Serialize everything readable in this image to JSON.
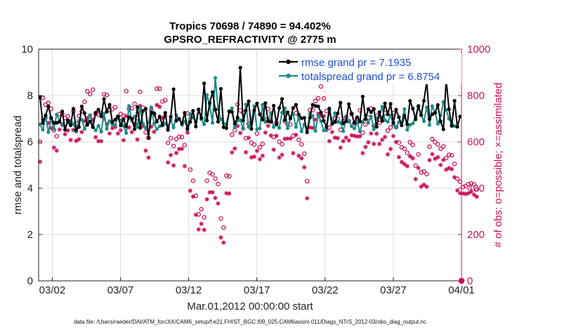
{
  "chart_data": {
    "type": "line",
    "title": "Tropics 70698 / 74890 = 94.402%",
    "subtitle": "GPSRO_REFRACTIVITY @ 2775 m",
    "xlabel": "Mar.01,2012 00:00:00 start",
    "ylabel": "rmse and totalspread",
    "y2label": "# of obs: o=possible; ×=assimilated",
    "footnote": "data file: /Users/raeder/DAI/ATM_forcXX/CAM6_setup/f.e21.FHIST_BGC.f09_025.CAM6assim.011/Diags_NTrS_2012-03/obs_diag_output.nc",
    "xlim": [
      0,
      31
    ],
    "ylim": [
      0,
      10
    ],
    "y2lim": [
      0,
      1000
    ],
    "x_ticks": [
      {
        "x": 1,
        "label": "03/02"
      },
      {
        "x": 6,
        "label": "03/07"
      },
      {
        "x": 11,
        "label": "03/12"
      },
      {
        "x": 16,
        "label": "03/17"
      },
      {
        "x": 21,
        "label": "03/22"
      },
      {
        "x": 26,
        "label": "03/27"
      },
      {
        "x": 31,
        "label": "04/01"
      }
    ],
    "y_ticks": [
      0,
      2,
      4,
      6,
      8,
      10
    ],
    "y2_ticks": [
      0,
      200,
      400,
      600,
      800,
      1000
    ],
    "legend_position": "top-right",
    "series": [
      {
        "name": "rmse grand pr = 7.1935",
        "axis": "left",
        "color": "#000000",
        "marker": "filled-circle",
        "values": [
          7.92,
          6.81,
          7.14,
          7.53,
          7.04,
          6.82,
          6.82,
          6.86,
          7.31,
          6.52,
          6.92,
          6.71,
          7.43,
          6.51,
          6.64,
          7.53,
          7.24,
          6.73,
          6.88,
          6.63,
          7.26,
          7.39,
          7.1,
          7.85,
          7.3,
          7.6,
          6.85,
          6.96,
          7.1,
          6.71,
          6.97,
          6.67,
          7.06,
          6.99,
          6.55,
          7.5,
          6.6,
          7.33,
          7.43,
          6.18,
          7.26,
          7.24,
          6.87,
          7.09,
          6.71,
          7.25,
          6.51,
          7.08,
          8.27,
          6.91,
          6.99,
          6.79,
          7.25,
          6.55,
          6.86,
          7.34,
          6.66,
          7.39,
          7.03,
          8.52,
          6.92,
          7.68,
          8.15,
          7.38,
          6.87,
          8.29,
          6.63,
          6.59,
          7.32,
          7.29,
          6.79,
          7.05,
          9.2,
          6.92,
          7.36,
          7.75,
          6.56,
          7.36,
          7.66,
          7.19,
          6.96,
          7.67,
          6.89,
          6.86,
          7.56,
          6.77,
          7.46,
          7.85,
          6.94,
          7.28,
          7.01,
          7.46,
          7.6,
          7.18,
          7.02,
          7.04,
          6.41,
          7.04,
          7.6,
          7.55,
          7.53,
          7.27,
          6.91,
          6.64,
          7.44,
          6.78,
          6.85,
          7.23,
          7.69,
          6.8,
          6.88,
          7.63,
          7.22,
          6.82,
          7.06,
          6.87,
          7.95,
          6.98,
          7.41,
          7.28,
          7.42,
          6.65,
          7.28,
          6.9,
          7.66,
          7.18,
          7.64,
          6.82,
          7.39,
          7.06,
          6.71,
          7.13,
          6.76,
          7.77,
          7.44,
          6.97,
          7.53,
          7.15,
          7.77,
          8.6,
          6.98,
          7.19,
          7.25,
          7.59,
          6.88,
          6.54,
          8.69,
          7.41,
          6.69,
          7.77,
          6.65,
          7.09
        ]
      },
      {
        "name": "totalspread grand pr = 6.8754",
        "axis": "left",
        "color": "#1a8c88",
        "marker": "filled-circle",
        "values": [
          6.75,
          6.52,
          7.1,
          6.42,
          6.98,
          6.55,
          7.18,
          6.91,
          6.72,
          6.65,
          6.83,
          6.91,
          6.77,
          6.44,
          6.91,
          6.96,
          6.56,
          6.88,
          7.14,
          6.65,
          6.5,
          6.69,
          6.44,
          7.22,
          6.56,
          6.9,
          6.75,
          6.72,
          7.05,
          6.93,
          6.69,
          6.38,
          7.55,
          6.91,
          7.09,
          6.65,
          7.45,
          6.79,
          6.59,
          6.83,
          7.49,
          6.78,
          6.55,
          6.67,
          6.75,
          6.79,
          6.61,
          6.94,
          6.62,
          7.15,
          6.99,
          6.73,
          6.88,
          6.6,
          7.2,
          7.04,
          6.86,
          7.41,
          6.97,
          6.76,
          8.02,
          7.6,
          6.82,
          8.76,
          7.42,
          6.98,
          6.79,
          6.75,
          7.3,
          7.45,
          6.62,
          6.92,
          6.94,
          6.57,
          7.61,
          6.64,
          6.92,
          7.54,
          6.54,
          6.58,
          7.6,
          6.86,
          6.91,
          7.25,
          6.64,
          6.74,
          6.6,
          7.26,
          7.45,
          6.59,
          7.0,
          7.2,
          6.64,
          7.07,
          6.45,
          6.75,
          6.46,
          7.2,
          7.12,
          6.47,
          7.13,
          6.89,
          6.49,
          6.53,
          7.35,
          6.77,
          7.24,
          6.86,
          6.83,
          6.46,
          7.04,
          6.92,
          6.67,
          6.58,
          6.82,
          6.45,
          6.87,
          7.14,
          6.82,
          7.09,
          6.54,
          7.03,
          7.09,
          7.52,
          6.93,
          6.87,
          7.14,
          6.75,
          6.61,
          6.85,
          6.84,
          7.41,
          6.52,
          6.73,
          6.79,
          7.07,
          7.56,
          7.17,
          6.89,
          7.49,
          6.73,
          7.54,
          7.26,
          6.78,
          7.14,
          7.72,
          7.37,
          7.0,
          6.77,
          6.68
        ]
      },
      {
        "name": "# obs possible",
        "axis": "right",
        "color": "#c8125a",
        "marker": "open-circle",
        "values": [
          600,
          790,
          760,
          768,
          742,
          650,
          624,
          720,
          722,
          703,
          710,
          684,
          732,
          679,
          712,
          732,
          773,
          818,
          806,
          825,
          721,
          718,
          723,
          805,
          802,
          737,
          741,
          749,
          706,
          720,
          713,
          819,
          742,
          745,
          764,
          702,
          816,
          747,
          641,
          617,
          737,
          720,
          829,
          829,
          774,
          779,
          596,
          616,
          582,
          612,
          622,
          621,
          586,
          723,
          480,
          432,
          367,
          287,
          309,
          274,
          432,
          466,
          460,
          441,
          418,
          269,
          230,
          454,
          451,
          631,
          650,
          761,
          736,
          726,
          616,
          678,
          596,
          588,
          636,
          576,
          591,
          696,
          742,
          692,
          621,
          683,
          600,
          590,
          689,
          676,
          675,
          626,
          724,
          609,
          589,
          549,
          430,
          737,
          737,
          776,
          788,
          839,
          787,
          733,
          662,
          697,
          700,
          699,
          652,
          690,
          707,
          689,
          720,
          681,
          699,
          736,
          639,
          675,
          705,
          744,
          668,
          712,
          682,
          700,
          724,
          648,
          662,
          724,
          663,
          597,
          576,
          570,
          553,
          598,
          587,
          497,
          546,
          468,
          472,
          461,
          579,
          612,
          599,
          589,
          570,
          580,
          530,
          544,
          542,
          505,
          441,
          428,
          405,
          409,
          417,
          421,
          416,
          395
        ]
      },
      {
        "name": "# obs assimilated",
        "axis": "right",
        "color": "#c8125a",
        "marker": "asterisk",
        "values": [
          514,
          695,
          702,
          682,
          659,
          575,
          562,
          653,
          676,
          633,
          649,
          608,
          651,
          604,
          611,
          642,
          689,
          703,
          714,
          696,
          620,
          603,
          603,
          700,
          677,
          636,
          659,
          664,
          636,
          650,
          607,
          711,
          662,
          642,
          679,
          610,
          755,
          668,
          562,
          532,
          665,
          643,
          759,
          751,
          703,
          712,
          511,
          543,
          498,
          552,
          569,
          570,
          495,
          640,
          389,
          364,
          285,
          222,
          246,
          220,
          352,
          382,
          382,
          358,
          334,
          187,
          165,
          378,
          377,
          554,
          571,
          668,
          638,
          657,
          555,
          617,
          533,
          536,
          561,
          525,
          540,
          640,
          669,
          627,
          566,
          626,
          532,
          544,
          613,
          614,
          614,
          551,
          630,
          540,
          529,
          490,
          356,
          662,
          660,
          696,
          721,
          713,
          711,
          651,
          603,
          642,
          618,
          616,
          575,
          603,
          618,
          606,
          628,
          626,
          623,
          624,
          551,
          578,
          598,
          636,
          591,
          635,
          591,
          609,
          621,
          546,
          569,
          625,
          599,
          534,
          513,
          504,
          495,
          538,
          529,
          439,
          487,
          407,
          415,
          406,
          521,
          547,
          527,
          534,
          500,
          522,
          480,
          487,
          482,
          447,
          390,
          378,
          377,
          375,
          378,
          385,
          372,
          363
        ]
      }
    ],
    "end_point": {
      "x": 31,
      "y2": 0
    }
  }
}
